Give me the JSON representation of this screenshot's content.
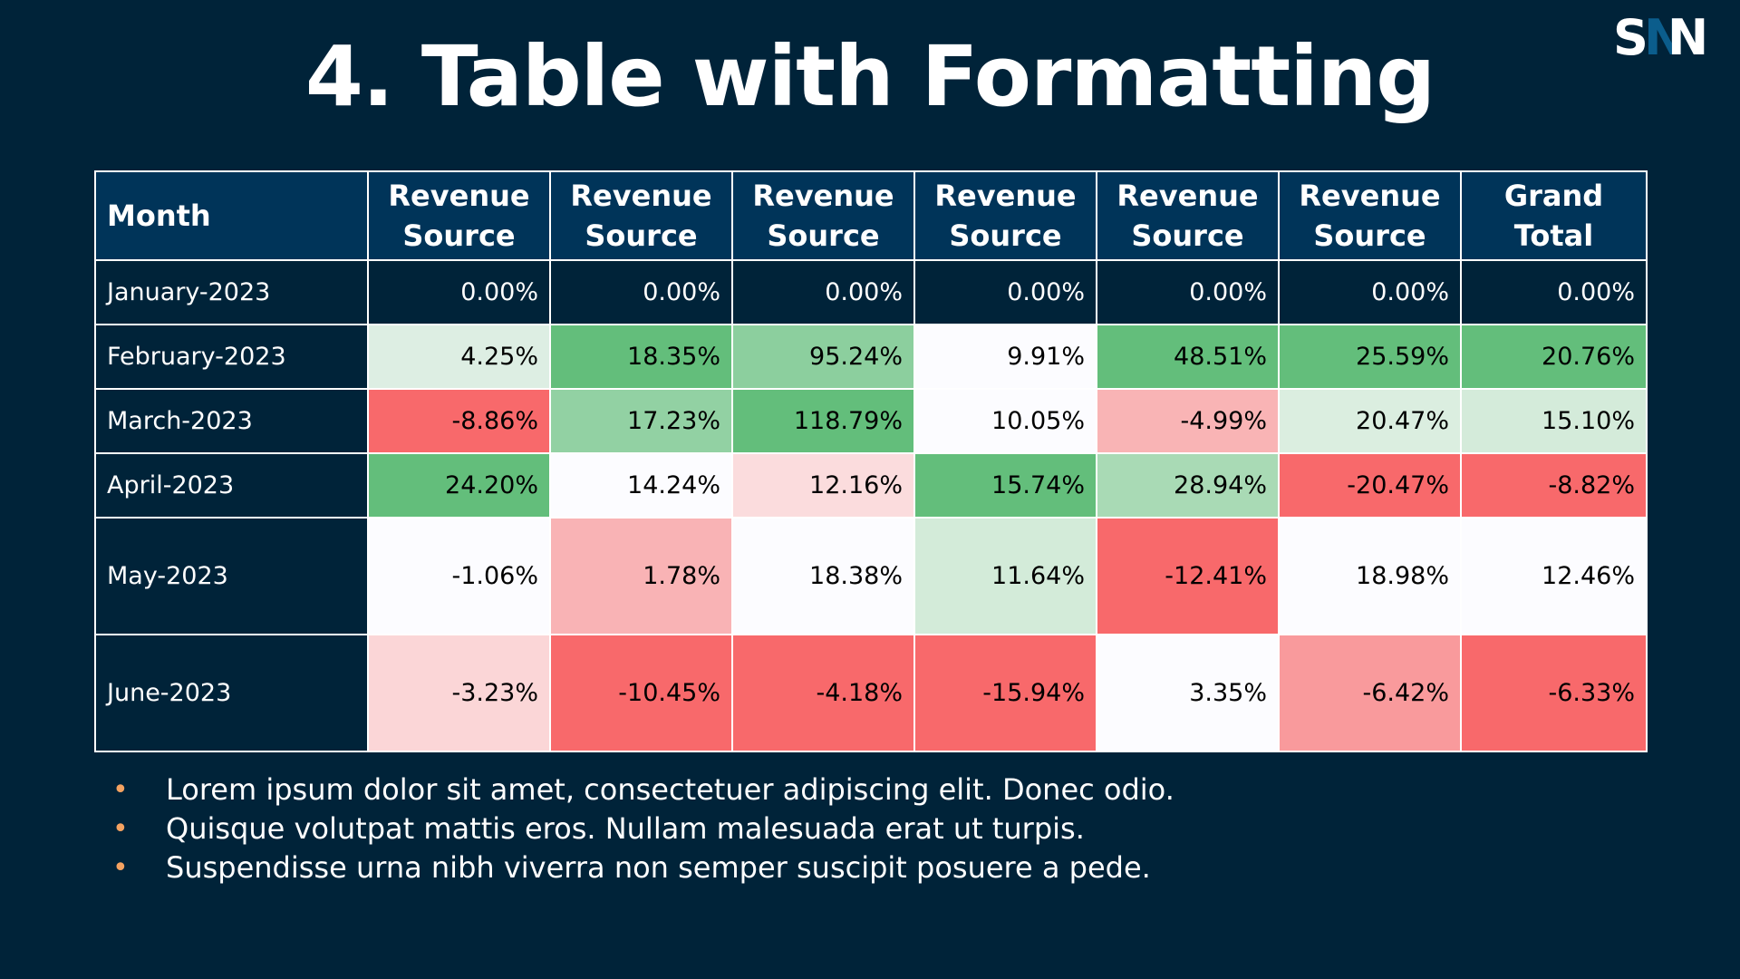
{
  "title": "4. Table with Formatting",
  "logo": {
    "s": "S",
    "n1": "N",
    "n2": "N"
  },
  "table": {
    "headers": [
      {
        "line1": "Month",
        "line2": ""
      },
      {
        "line1": "Revenue",
        "line2": "Source"
      },
      {
        "line1": "Revenue",
        "line2": "Source"
      },
      {
        "line1": "Revenue",
        "line2": "Source"
      },
      {
        "line1": "Revenue",
        "line2": "Source"
      },
      {
        "line1": "Revenue",
        "line2": "Source"
      },
      {
        "line1": "Revenue",
        "line2": "Source"
      },
      {
        "line1": "Grand",
        "line2": "Total"
      }
    ],
    "rows": [
      {
        "month": "January-2023",
        "cells": [
          {
            "value": "0.00%",
            "bg": "#002339",
            "fg": "#ffffff"
          },
          {
            "value": "0.00%",
            "bg": "#002339",
            "fg": "#ffffff"
          },
          {
            "value": "0.00%",
            "bg": "#002339",
            "fg": "#ffffff"
          },
          {
            "value": "0.00%",
            "bg": "#002339",
            "fg": "#ffffff"
          },
          {
            "value": "0.00%",
            "bg": "#002339",
            "fg": "#ffffff"
          },
          {
            "value": "0.00%",
            "bg": "#002339",
            "fg": "#ffffff"
          },
          {
            "value": "0.00%",
            "bg": "#002339",
            "fg": "#ffffff"
          }
        ]
      },
      {
        "month": "February-2023",
        "cells": [
          {
            "value": "4.25%",
            "bg": "#ddeee3",
            "fg": "#000000"
          },
          {
            "value": "18.35%",
            "bg": "#63be7b",
            "fg": "#000000"
          },
          {
            "value": "95.24%",
            "bg": "#8ccf9e",
            "fg": "#000000"
          },
          {
            "value": "9.91%",
            "bg": "#fcfcff",
            "fg": "#000000"
          },
          {
            "value": "48.51%",
            "bg": "#63be7b",
            "fg": "#000000"
          },
          {
            "value": "25.59%",
            "bg": "#63be7b",
            "fg": "#000000"
          },
          {
            "value": "20.76%",
            "bg": "#63be7b",
            "fg": "#000000"
          }
        ]
      },
      {
        "month": "March-2023",
        "cells": [
          {
            "value": "-8.86%",
            "bg": "#f8696b",
            "fg": "#000000"
          },
          {
            "value": "17.23%",
            "bg": "#92d1a3",
            "fg": "#000000"
          },
          {
            "value": "118.79%",
            "bg": "#63be7b",
            "fg": "#000000"
          },
          {
            "value": "10.05%",
            "bg": "#fcfcff",
            "fg": "#000000"
          },
          {
            "value": "-4.99%",
            "bg": "#f9b4b5",
            "fg": "#000000"
          },
          {
            "value": "20.47%",
            "bg": "#dbeee0",
            "fg": "#000000"
          },
          {
            "value": "15.10%",
            "bg": "#d4ebda",
            "fg": "#000000"
          }
        ]
      },
      {
        "month": "April-2023",
        "cells": [
          {
            "value": "24.20%",
            "bg": "#63be7b",
            "fg": "#000000"
          },
          {
            "value": "14.24%",
            "bg": "#fcfcff",
            "fg": "#000000"
          },
          {
            "value": "12.16%",
            "bg": "#fbdcdd",
            "fg": "#000000"
          },
          {
            "value": "15.74%",
            "bg": "#63be7b",
            "fg": "#000000"
          },
          {
            "value": "28.94%",
            "bg": "#a9dab5",
            "fg": "#000000"
          },
          {
            "value": "-20.47%",
            "bg": "#f8696b",
            "fg": "#000000"
          },
          {
            "value": "-8.82%",
            "bg": "#f8696b",
            "fg": "#000000"
          }
        ]
      },
      {
        "month": "May-2023",
        "cells": [
          {
            "value": "-1.06%",
            "bg": "#fcfcff",
            "fg": "#000000"
          },
          {
            "value": "1.78%",
            "bg": "#f9b3b5",
            "fg": "#000000"
          },
          {
            "value": "18.38%",
            "bg": "#fcfcff",
            "fg": "#000000"
          },
          {
            "value": "11.64%",
            "bg": "#d3ebd9",
            "fg": "#000000"
          },
          {
            "value": "-12.41%",
            "bg": "#f8696b",
            "fg": "#000000"
          },
          {
            "value": "18.98%",
            "bg": "#fcfcff",
            "fg": "#000000"
          },
          {
            "value": "12.46%",
            "bg": "#fcfcff",
            "fg": "#000000"
          }
        ]
      },
      {
        "month": "June-2023",
        "cells": [
          {
            "value": "-3.23%",
            "bg": "#fbd6d7",
            "fg": "#000000"
          },
          {
            "value": "-10.45%",
            "bg": "#f8696b",
            "fg": "#000000"
          },
          {
            "value": "-4.18%",
            "bg": "#f8696b",
            "fg": "#000000"
          },
          {
            "value": "-15.94%",
            "bg": "#f8696b",
            "fg": "#000000"
          },
          {
            "value": "3.35%",
            "bg": "#fcfcff",
            "fg": "#000000"
          },
          {
            "value": "-6.42%",
            "bg": "#f99a9c",
            "fg": "#000000"
          },
          {
            "value": "-6.33%",
            "bg": "#f8696b",
            "fg": "#000000"
          }
        ]
      }
    ]
  },
  "bullets": [
    "Lorem ipsum dolor sit amet, consectetuer adipiscing elit. Donec odio.",
    "Quisque volutpat mattis eros. Nullam malesuada erat ut turpis.",
    "Suspendisse urna nibh viverra non semper suscipit posuere a pede."
  ],
  "bullet_symbol": "•",
  "colors": {
    "background": "#002339",
    "header_bg": "#003459",
    "bullet": "#f4a261",
    "positive": "#63be7b",
    "negative": "#f8696b",
    "neutral": "#fcfcff"
  }
}
